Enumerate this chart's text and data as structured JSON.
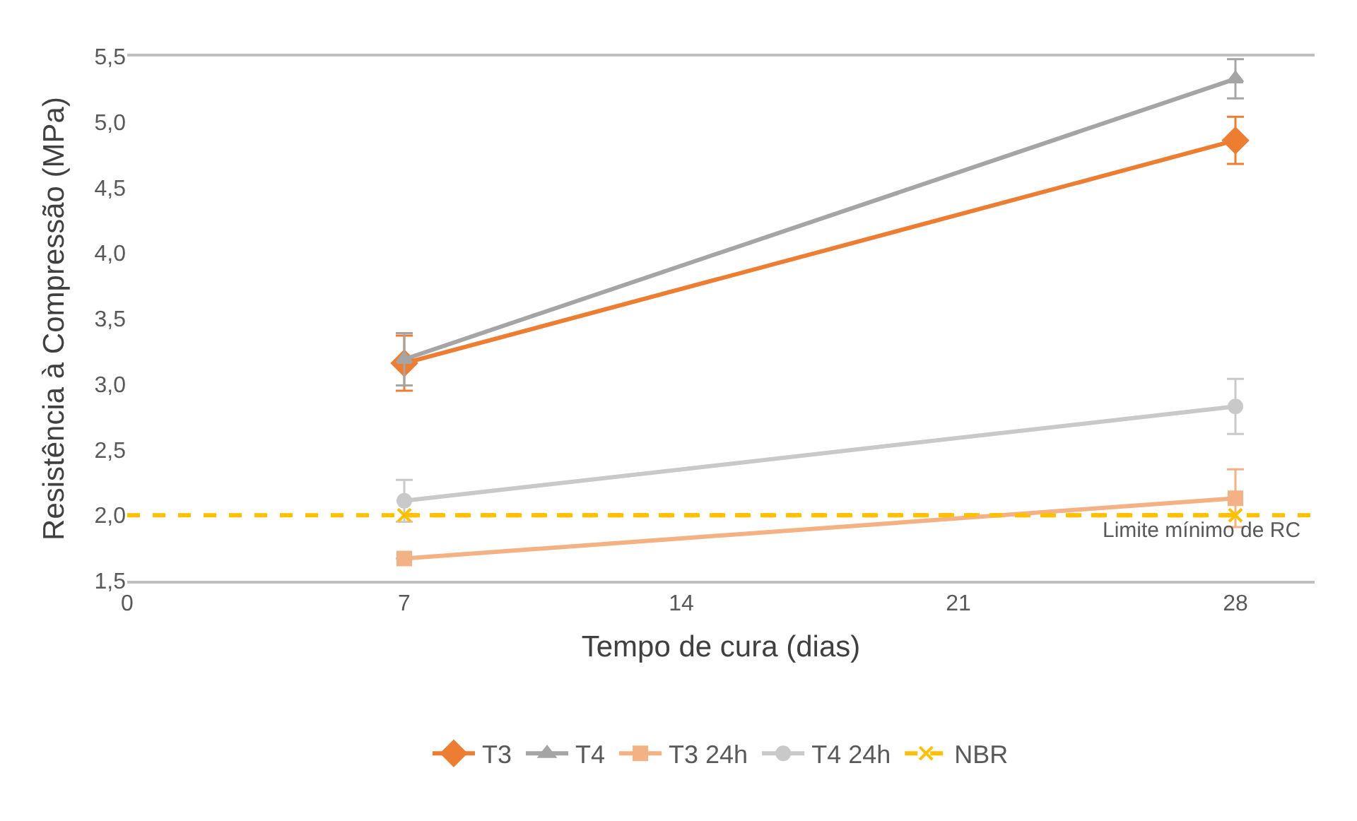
{
  "chart_data": {
    "type": "line",
    "xlabel": "Tempo de cura (dias)",
    "ylabel": "Resistência à Compressão (MPa)",
    "x": [
      7,
      28
    ],
    "xlim": [
      0,
      30
    ],
    "xticks": [
      0,
      7,
      14,
      21,
      28
    ],
    "ylim": [
      1.5,
      5.5
    ],
    "yticks": [
      {
        "value": 1.5,
        "label": "1,5"
      },
      {
        "value": 2.0,
        "label": "2,0"
      },
      {
        "value": 2.5,
        "label": "2,5"
      },
      {
        "value": 3.0,
        "label": "3,0"
      },
      {
        "value": 3.5,
        "label": "3,5"
      },
      {
        "value": 4.0,
        "label": "4,0"
      },
      {
        "value": 4.5,
        "label": "4,5"
      },
      {
        "value": 5.0,
        "label": "5,0"
      },
      {
        "value": 5.5,
        "label": "5,5"
      }
    ],
    "series": [
      {
        "name": "T3",
        "color": "#ed7d31",
        "marker": "diamond",
        "values": [
          3.16,
          4.86
        ],
        "errors": [
          0.21,
          0.18
        ]
      },
      {
        "name": "T4",
        "color": "#a5a5a5",
        "marker": "triangle",
        "values": [
          3.19,
          5.33
        ],
        "errors": [
          0.2,
          0.15
        ]
      },
      {
        "name": "T3 24h",
        "color": "#f4b183",
        "marker": "square",
        "values": [
          1.67,
          2.13
        ],
        "errors": [
          null,
          0.22
        ]
      },
      {
        "name": "T4 24h",
        "color": "#c9c9c9",
        "marker": "circle",
        "values": [
          2.11,
          2.83
        ],
        "errors": [
          0.16,
          0.21
        ]
      },
      {
        "name": "NBR",
        "color": "#ffc000",
        "marker": "cross",
        "line_style": "dashed",
        "values": [
          2.0,
          2.0
        ]
      }
    ],
    "ref_lines": [
      {
        "axis": "y",
        "value": 2.0,
        "label": "Limite mínimo de RC",
        "color": "#ffc000",
        "line_style": "dashed"
      }
    ],
    "grid": false,
    "legend": "bottom"
  }
}
